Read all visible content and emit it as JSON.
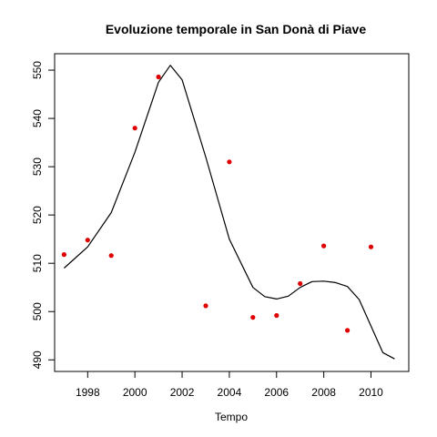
{
  "chart_data": {
    "type": "scatter",
    "title": "Evoluzione temporale in San Donà di Piave",
    "xlabel": "Tempo",
    "ylabel": "",
    "xlim": [
      1996.6,
      2011.6
    ],
    "ylim": [
      487.6,
      553.4
    ],
    "x_ticks": [
      1998,
      2000,
      2002,
      2004,
      2006,
      2008,
      2010
    ],
    "y_ticks": [
      490,
      500,
      510,
      520,
      530,
      540,
      550
    ],
    "grid": false,
    "points": {
      "color": "#e00000",
      "x": [
        1997,
        1998,
        1999,
        2000,
        2001,
        2003,
        2004,
        2005,
        2006,
        2007,
        2008,
        2009,
        2010
      ],
      "y": [
        511.8,
        514.8,
        511.6,
        538.0,
        548.6,
        501.2,
        531.0,
        498.8,
        499.2,
        505.8,
        513.6,
        496.1,
        513.4
      ]
    },
    "smooth_line": {
      "color": "#000000",
      "x": [
        1997,
        1998,
        1999,
        2000,
        2001,
        2001.5,
        2002,
        2003,
        2004,
        2005,
        2005.5,
        2006,
        2006.5,
        2007,
        2007.5,
        2008,
        2008.5,
        2009,
        2009.5,
        2010,
        2010.5,
        2011
      ],
      "y": [
        509.0,
        513.4,
        520.5,
        533.0,
        547.5,
        551.0,
        548.0,
        532.0,
        515.0,
        505.0,
        503.1,
        502.6,
        503.2,
        505.0,
        506.2,
        506.3,
        506.0,
        505.2,
        502.5,
        497.0,
        491.5,
        490.2
      ]
    }
  }
}
